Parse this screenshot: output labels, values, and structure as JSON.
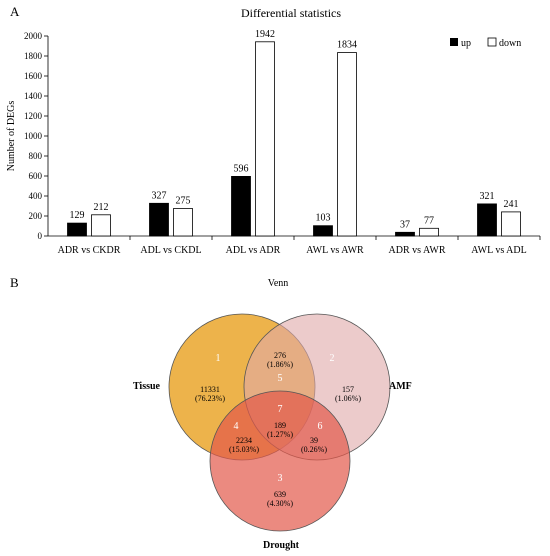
{
  "panels": {
    "a_label": "A",
    "b_label": "B"
  },
  "chart_data": [
    {
      "type": "bar",
      "title": "Differential statistics",
      "xlabel": "",
      "ylabel": "Number of DEGs",
      "ylim": [
        0,
        2000
      ],
      "yticks": [
        0,
        200,
        400,
        600,
        800,
        1000,
        1200,
        1400,
        1600,
        1800,
        2000
      ],
      "categories": [
        "ADR vs CKDR",
        "ADL vs CKDL",
        "ADL vs ADR",
        "AWL vs AWR",
        "ADR vs AWR",
        "AWL vs ADL"
      ],
      "series": [
        {
          "name": "up",
          "values": [
            129,
            327,
            596,
            103,
            37,
            321
          ],
          "color": "#000000"
        },
        {
          "name": "down",
          "values": [
            212,
            275,
            1942,
            1834,
            77,
            241
          ],
          "color": "#ffffff"
        }
      ],
      "legend": "top-right",
      "data_labels": true,
      "grid": false
    },
    {
      "type": "venn",
      "title": "Venn",
      "sets": [
        {
          "name": "Tissue",
          "color": "#eaa62b"
        },
        {
          "name": "AMF",
          "color": "#dfa9a9"
        },
        {
          "name": "Drought",
          "color": "#e2584a"
        }
      ],
      "regions": [
        {
          "id": "1",
          "sets": [
            "Tissue"
          ],
          "count": "11331",
          "percent": "(76.23%)"
        },
        {
          "id": "2",
          "sets": [
            "AMF"
          ],
          "count": "157",
          "percent": "(1.06%)"
        },
        {
          "id": "3",
          "sets": [
            "Drought"
          ],
          "count": "639",
          "percent": "(4.30%)"
        },
        {
          "id": "4",
          "sets": [
            "Tissue",
            "Drought"
          ],
          "count": "2234",
          "percent": "(15.03%)"
        },
        {
          "id": "5",
          "sets": [
            "Tissue",
            "AMF"
          ],
          "count": "276",
          "percent": "(1.86%)"
        },
        {
          "id": "6",
          "sets": [
            "AMF",
            "Drought"
          ],
          "count": "39",
          "percent": "(0.26%)"
        },
        {
          "id": "7",
          "sets": [
            "Tissue",
            "AMF",
            "Drought"
          ],
          "count": "189",
          "percent": "(1.27%)"
        }
      ]
    }
  ]
}
